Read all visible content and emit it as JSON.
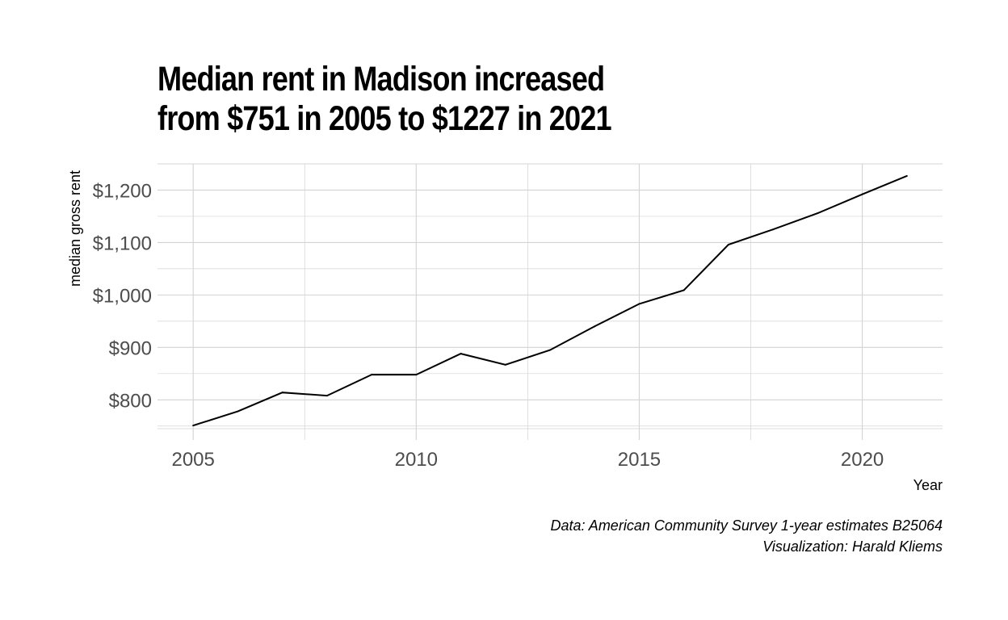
{
  "chart_data": {
    "type": "line",
    "title_lines": [
      "Median rent in Madison increased",
      "from $751 in 2005 to $1227 in 2021"
    ],
    "xlabel": "Year",
    "ylabel": "median gross rent",
    "x": [
      2005,
      2006,
      2007,
      2008,
      2009,
      2010,
      2011,
      2012,
      2013,
      2014,
      2015,
      2016,
      2017,
      2018,
      2019,
      2020,
      2021
    ],
    "values": [
      751,
      778,
      814,
      808,
      848,
      848,
      888,
      867,
      895,
      940,
      983,
      1009,
      1096,
      1125,
      1156,
      1192,
      1227
    ],
    "xlim": [
      2004.2,
      2021.8
    ],
    "ylim": [
      745,
      1250
    ],
    "x_ticks": [
      2005,
      2010,
      2015,
      2020
    ],
    "x_tick_labels": [
      "2005",
      "2010",
      "2015",
      "2020"
    ],
    "y_ticks": [
      800,
      900,
      1000,
      1100,
      1200
    ],
    "y_tick_labels": [
      "$800",
      "$900",
      "$1,000",
      "$1,100",
      "$1,200"
    ],
    "grid": true,
    "line_color": "#000000",
    "grid_color": "#d3d3d3",
    "caption_lines": [
      "Data: American Community Survey 1-year estimates B25064",
      "Visualization: Harald Kliems"
    ]
  }
}
